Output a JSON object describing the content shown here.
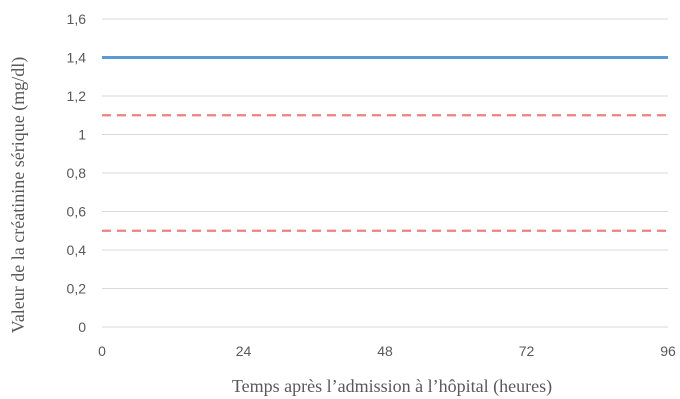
{
  "chart_data": {
    "type": "line",
    "title": "",
    "xlabel": "Temps après l’admission à l’hôpital (heures)",
    "ylabel": "Valeur de la créatinine sérique (mg/dl)",
    "xlim": [
      0,
      96
    ],
    "ylim": [
      0,
      1.6
    ],
    "x_ticks": [
      0,
      24,
      48,
      72,
      96
    ],
    "x_tick_labels": [
      "0",
      "24",
      "48",
      "72",
      "96"
    ],
    "y_ticks": [
      0,
      0.2,
      0.4,
      0.6,
      0.8,
      1.0,
      1.2,
      1.4,
      1.6
    ],
    "y_tick_labels": [
      "0",
      "0,2",
      "0,4",
      "0,6",
      "0,8",
      "1",
      "1,2",
      "1,4",
      "1,6"
    ],
    "grid": true,
    "series": [
      {
        "x": [
          0,
          96
        ],
        "values": [
          1.4,
          1.4
        ],
        "color": "#5b9bd5",
        "style": "solid"
      },
      {
        "x": [
          0,
          96
        ],
        "values": [
          1.1,
          1.1
        ],
        "color": "#f08080",
        "style": "dashed"
      },
      {
        "x": [
          0,
          96
        ],
        "values": [
          0.5,
          0.5
        ],
        "color": "#f08080",
        "style": "dashed"
      }
    ]
  }
}
